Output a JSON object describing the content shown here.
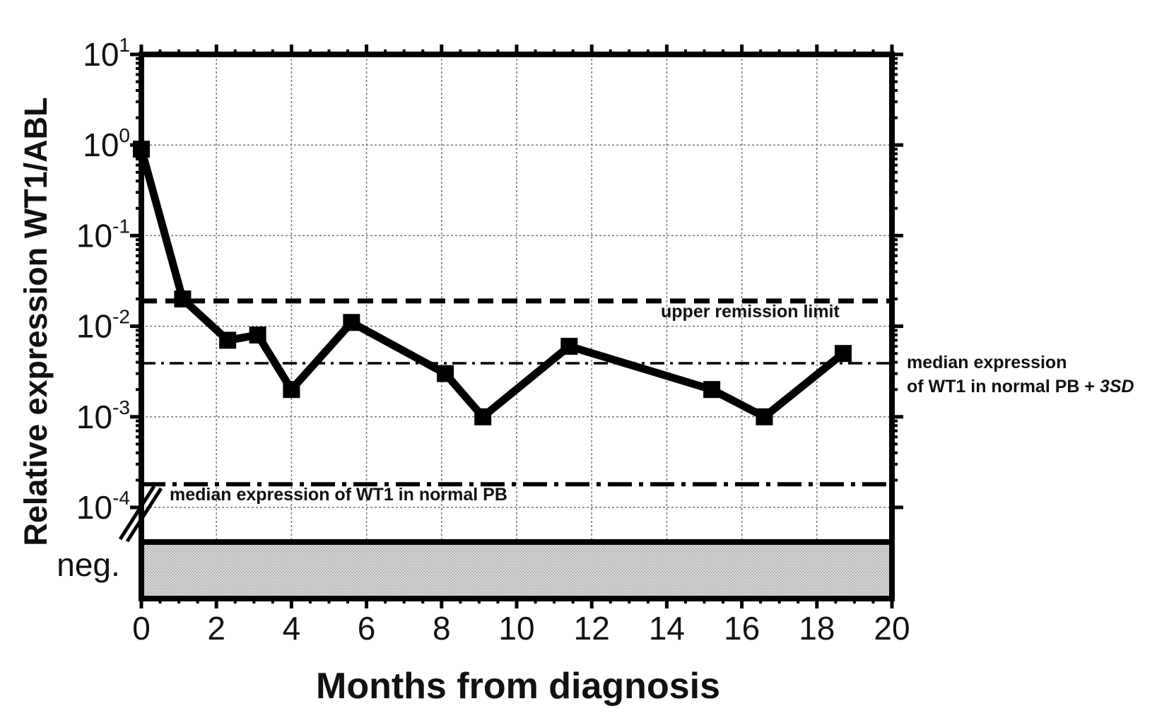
{
  "chart_data": {
    "type": "line",
    "xlabel": "Months from diagnosis",
    "ylabel": "Relative expression WT1/ABL",
    "y_scale": "log",
    "xlim": [
      0,
      20
    ],
    "ylim": [
      0.0001,
      10
    ],
    "x_ticks": [
      "0",
      "2",
      "4",
      "6",
      "8",
      "10",
      "12",
      "14",
      "16",
      "18",
      "20"
    ],
    "y_ticks": [
      {
        "base": "10",
        "exp": "1",
        "value": 10
      },
      {
        "base": "10",
        "exp": "0",
        "value": 1
      },
      {
        "base": "10",
        "exp": "-1",
        "value": 0.1
      },
      {
        "base": "10",
        "exp": "-2",
        "value": 0.01
      },
      {
        "base": "10",
        "exp": "-3",
        "value": 0.001
      },
      {
        "base": "10",
        "exp": "-4",
        "value": 0.0001
      }
    ],
    "neg_label": "neg.",
    "grid": true,
    "series": [
      {
        "x": [
          0,
          1.1,
          2.3,
          3.1,
          4.0,
          5.6,
          8.1,
          9.1,
          11.4,
          15.2,
          16.6,
          18.7
        ],
        "y": [
          0.9,
          0.02,
          0.007,
          0.008,
          0.002,
          0.011,
          0.003,
          0.001,
          0.006,
          0.002,
          0.001,
          0.005
        ]
      }
    ],
    "reference_lines": [
      {
        "id": "upper-remission-limit",
        "y": 0.019,
        "style": "dashed",
        "label": "upper remission limit"
      },
      {
        "id": "median-plus-3sd",
        "y": 0.0039,
        "style": "dashdot",
        "label_line1": "median expression",
        "label_line2_prefix": "of WT1 in normal PB + ",
        "label_line2_italic": "3SD"
      },
      {
        "id": "median-normal-pb",
        "y": 0.00018,
        "style": "longdash-dot",
        "label": "median expression of WT1 in normal PB"
      }
    ],
    "colors": {
      "line": "#000000",
      "grid": "#777777",
      "neg_fill": "#c4c4c4"
    }
  }
}
